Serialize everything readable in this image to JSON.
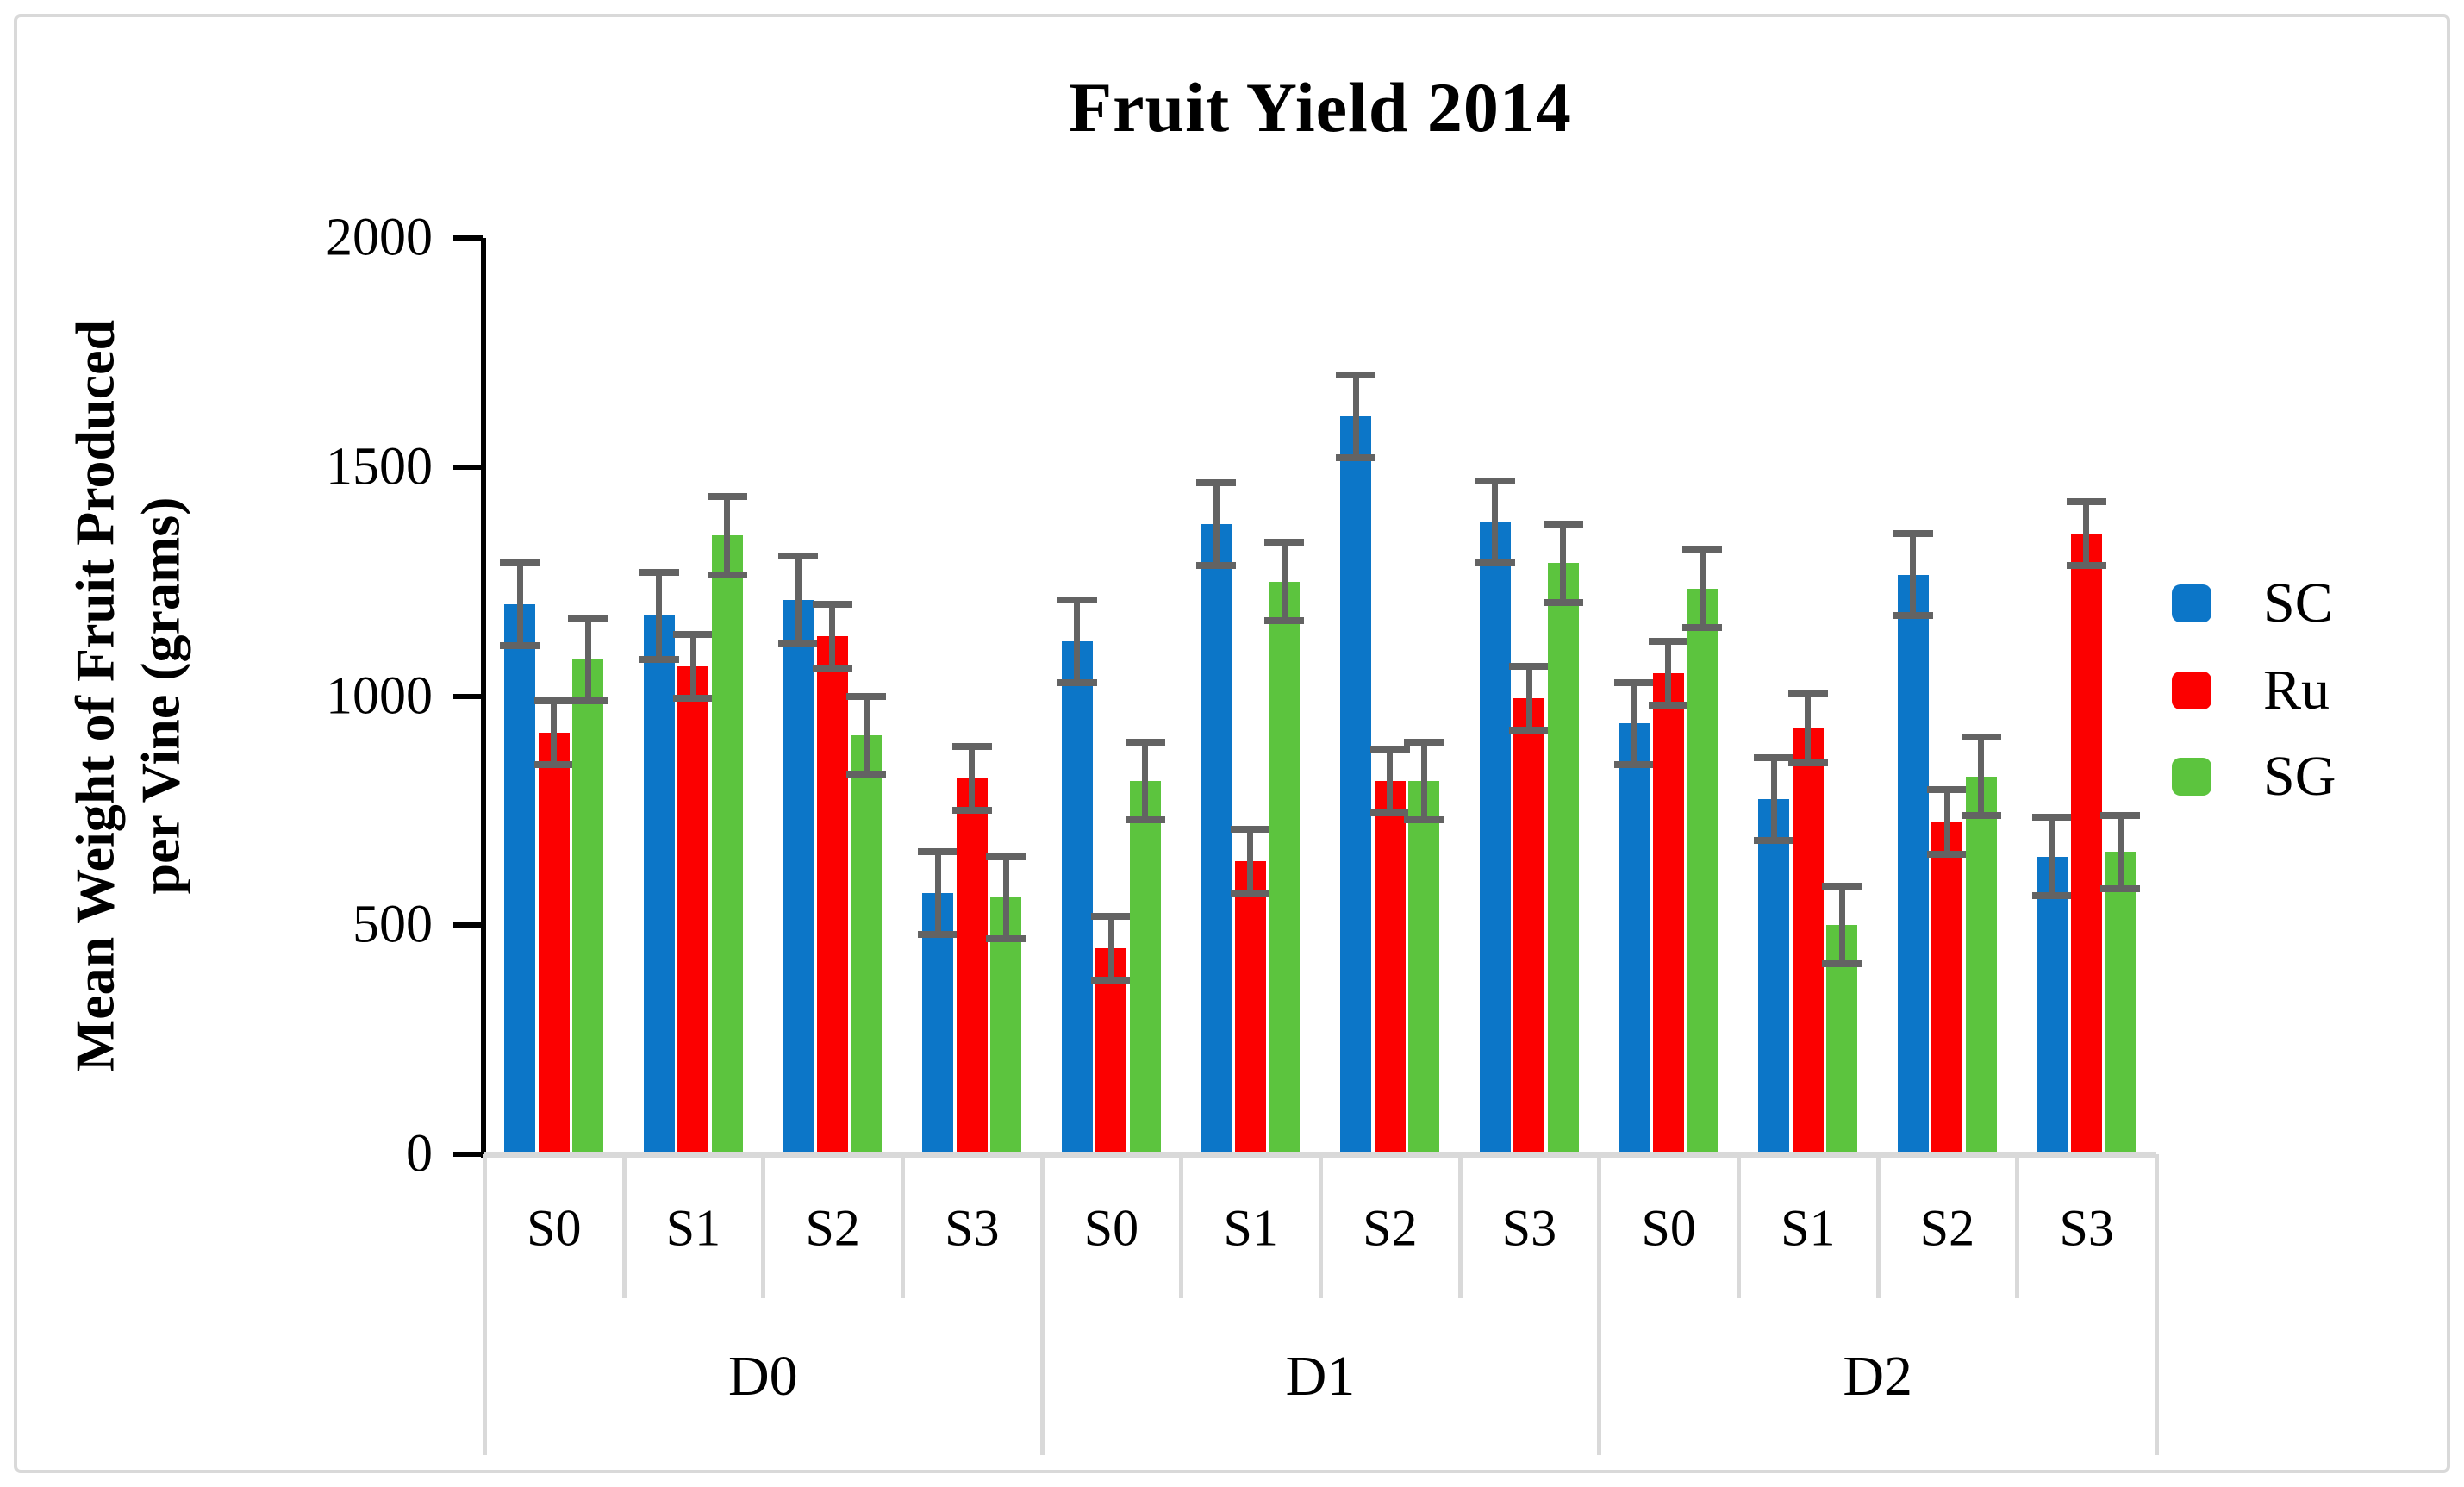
{
  "title": "Fruit Yield 2014",
  "y_axis_title_line1": "Mean Weight of Fruit Produced",
  "y_axis_title_line2": "per Vine (grams)",
  "legend": [
    {
      "label": "SC",
      "color": "#0c76c8"
    },
    {
      "label": "Ru",
      "color": "#fc0000"
    },
    {
      "label": "SG",
      "color": "#5cc43e"
    }
  ],
  "chart_data": {
    "type": "bar",
    "title": "Fruit Yield 2014",
    "xlabel": "",
    "ylabel": "Mean Weight of Fruit Produced per Vine (grams)",
    "ylim": [
      0,
      2000
    ],
    "y_ticks": [
      2000,
      1500,
      1000,
      500,
      0
    ],
    "grid": false,
    "legend_position": "right",
    "group_labels": [
      "D0",
      "D1",
      "D2"
    ],
    "categories": [
      "S0",
      "S1",
      "S2",
      "S3",
      "S0",
      "S1",
      "S2",
      "S3",
      "S0",
      "S1",
      "S2",
      "S3"
    ],
    "series": [
      {
        "name": "SC",
        "color": "#0c76c8",
        "values": [
          1200,
          1175,
          1210,
          570,
          1120,
          1375,
          1610,
          1380,
          940,
          775,
          1265,
          650
        ],
        "errors": [
          90,
          95,
          95,
          90,
          90,
          90,
          90,
          90,
          90,
          90,
          90,
          85
        ]
      },
      {
        "name": "Ru",
        "color": "#fc0000",
        "values": [
          920,
          1065,
          1130,
          820,
          450,
          640,
          815,
          995,
          1050,
          930,
          725,
          1355
        ],
        "errors": [
          70,
          70,
          70,
          70,
          70,
          70,
          70,
          70,
          70,
          75,
          70,
          70
        ]
      },
      {
        "name": "SG",
        "color": "#5cc43e",
        "values": [
          1080,
          1350,
          915,
          560,
          815,
          1250,
          815,
          1290,
          1235,
          500,
          825,
          660
        ],
        "errors": [
          90,
          85,
          85,
          90,
          85,
          85,
          85,
          85,
          85,
          85,
          85,
          80
        ]
      }
    ],
    "error_bar_color": "#636363",
    "axis_color": "#000000",
    "table_line_color": "#d9d9d9"
  }
}
